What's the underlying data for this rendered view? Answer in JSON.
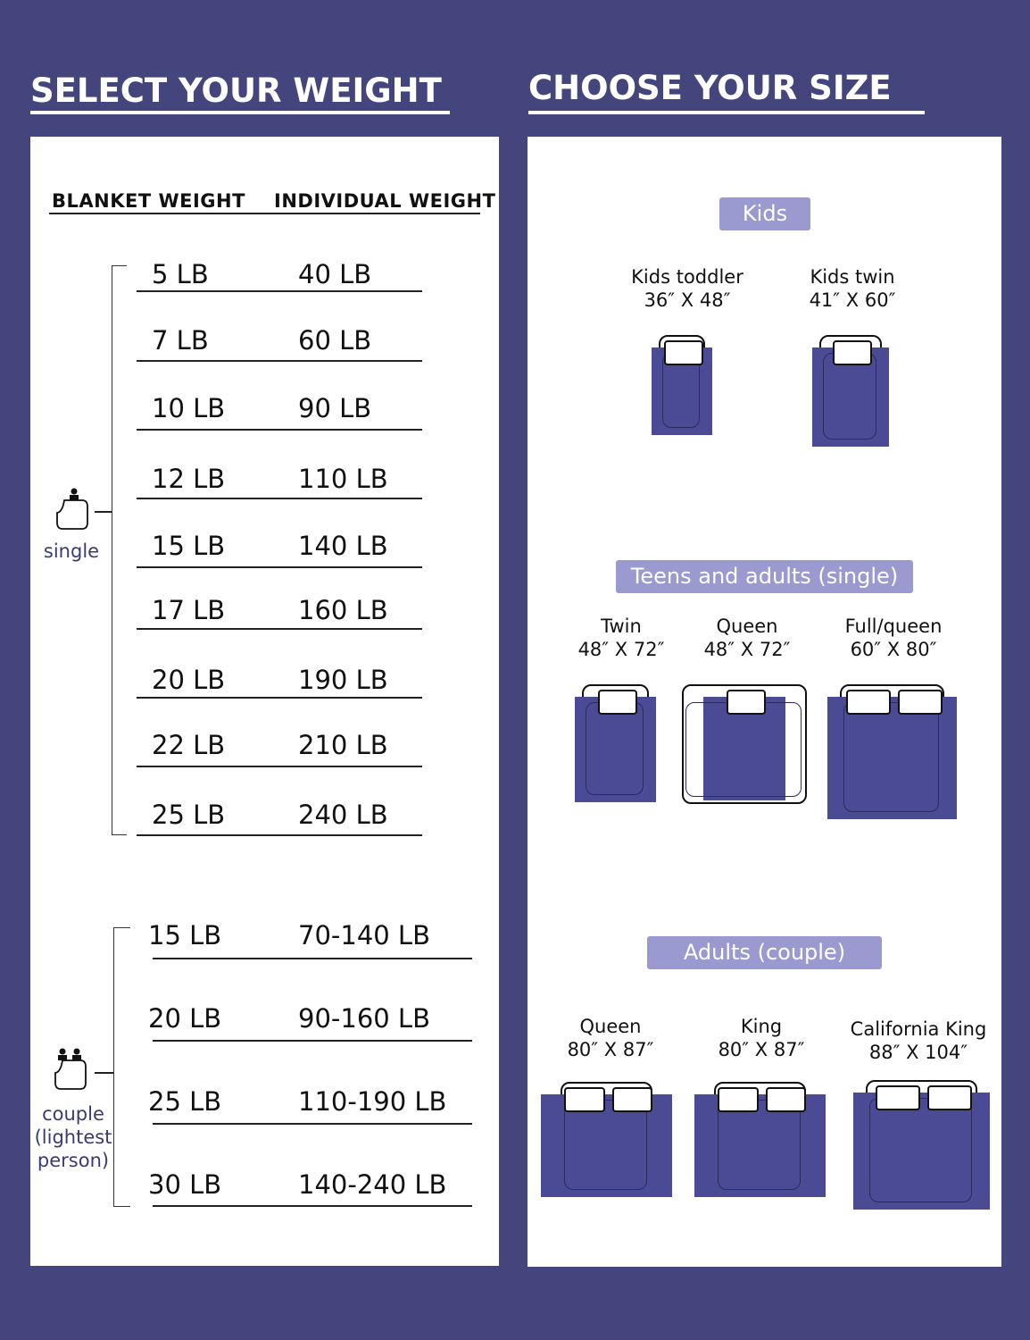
{
  "left": {
    "title": "SELECT YOUR WEIGHT",
    "col_blanket": "BLANKET WEIGHT",
    "col_individual": "INDIVIDUAL WEIGHT",
    "single_label": "single",
    "couple_label": "couple (lightest person)",
    "single_rows": [
      [
        "5 LB",
        "40 LB"
      ],
      [
        "7 LB",
        "60 LB"
      ],
      [
        "10 LB",
        "90 LB"
      ],
      [
        "12 LB",
        "110 LB"
      ],
      [
        "15 LB",
        "140 LB"
      ],
      [
        "17 LB",
        "160 LB"
      ],
      [
        "20 LB",
        "190 LB"
      ],
      [
        "22 LB",
        "210 LB"
      ],
      [
        "25 LB",
        "240 LB"
      ]
    ],
    "couple_rows": [
      [
        "15 LB",
        "70-140 LB"
      ],
      [
        "20 LB",
        "90-160 LB"
      ],
      [
        "25 LB",
        "110-190 LB"
      ],
      [
        "30 LB",
        "140-240 LB"
      ]
    ]
  },
  "right": {
    "title": "CHOOSE YOUR SIZE",
    "groups": [
      {
        "tag": "Kids",
        "beds": [
          {
            "name": "Kids toddler",
            "size": "36″ X 48″"
          },
          {
            "name": "Kids twin",
            "size": "41″ X 60″"
          }
        ]
      },
      {
        "tag": "Teens and adults (single)",
        "beds": [
          {
            "name": "Twin",
            "size": "48″ X 72″"
          },
          {
            "name": "Queen",
            "size": "48″ X 72″"
          },
          {
            "name": "Full/queen",
            "size": "60″ X 80″"
          }
        ]
      },
      {
        "tag": "Adults (couple)",
        "beds": [
          {
            "name": "Queen",
            "size": "80″ X 87″"
          },
          {
            "name": "King",
            "size": "80″ X 87″"
          },
          {
            "name": "California King",
            "size": "88″ X 104″"
          }
        ]
      }
    ]
  },
  "colors": {
    "background": "#45457d",
    "blanket": "#4b4a94",
    "tag": "#9a99d0",
    "label": "#3a3a74"
  }
}
